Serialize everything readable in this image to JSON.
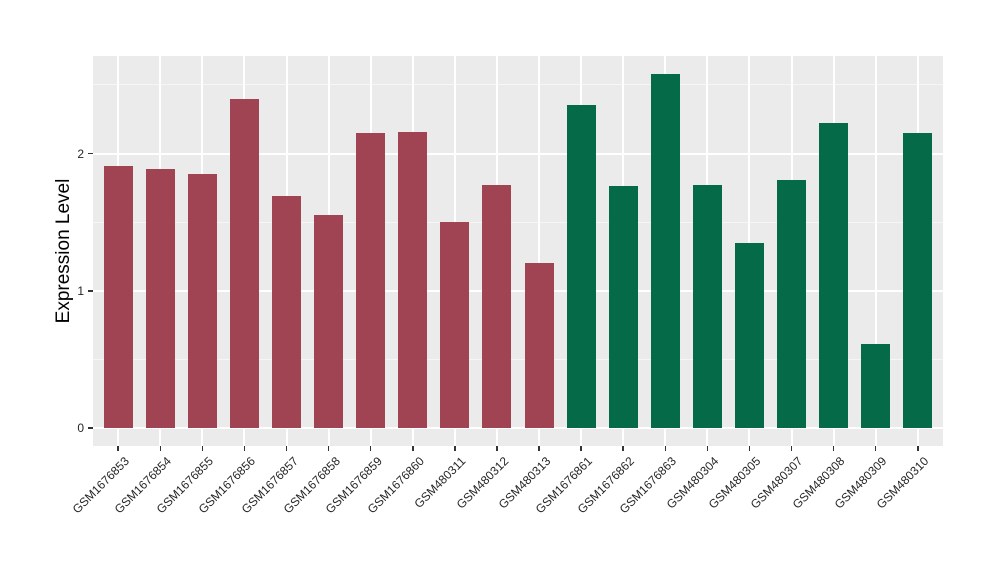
{
  "style": {
    "figure_bg": "#FFFFFF",
    "panel_bg": "#EBEBEB",
    "grid_major_color": "#FFFFFF",
    "grid_minor_color": "rgba(255,255,255,0.55)",
    "axis_text_color": "#262626",
    "axis_title_color": "#000000",
    "tick_mark_color": "#333333"
  },
  "chart_data": {
    "type": "bar",
    "title": "",
    "xlabel": "",
    "ylabel": "Expression Level",
    "ylim": [
      -0.13,
      2.71
    ],
    "y_ticks": [
      0,
      1,
      2
    ],
    "y_minor_ticks": [
      0.5,
      1.5,
      2.5
    ],
    "grid": "on",
    "legend": "none",
    "categories": [
      "GSM1676853",
      "GSM1676854",
      "GSM1676855",
      "GSM1676856",
      "GSM1676857",
      "GSM1676858",
      "GSM1676859",
      "GSM1676860",
      "GSM480311",
      "GSM480312",
      "GSM480313",
      "GSM1676861",
      "GSM1676862",
      "GSM1676863",
      "GSM480304",
      "GSM480305",
      "GSM480307",
      "GSM480308",
      "GSM480309",
      "GSM480310"
    ],
    "values": [
      1.91,
      1.89,
      1.85,
      2.4,
      1.69,
      1.55,
      2.15,
      2.16,
      1.5,
      1.77,
      1.2,
      2.35,
      1.76,
      2.58,
      1.77,
      1.35,
      1.81,
      2.22,
      0.61,
      2.15
    ],
    "groups": [
      "group1",
      "group1",
      "group1",
      "group1",
      "group1",
      "group1",
      "group1",
      "group1",
      "group1",
      "group1",
      "group1",
      "group2",
      "group2",
      "group2",
      "group2",
      "group2",
      "group2",
      "group2",
      "group2",
      "group2"
    ],
    "group_colors": {
      "group1": "#A04352",
      "group2": "#046A47"
    }
  }
}
